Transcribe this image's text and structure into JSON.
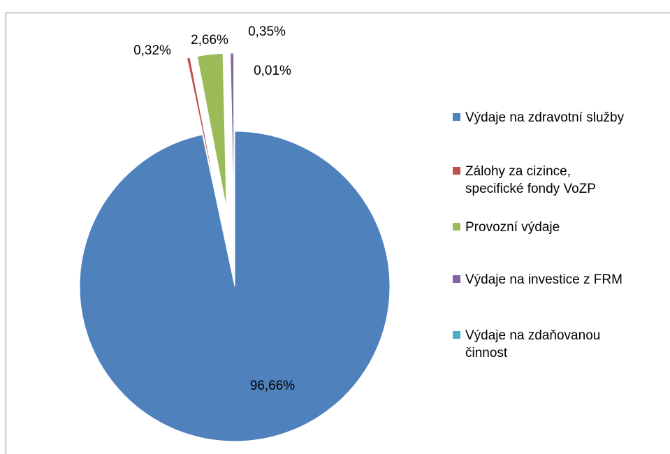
{
  "chart_data": {
    "type": "pie",
    "categories": [
      "Výdaje na zdravotní služby",
      "Zálohy za cizince,\nspecifické fondy VoZP",
      "Provozní výdaje",
      "Výdaje na investice z FRM",
      "Výdaje na zdaňovanou\nčinnost"
    ],
    "values": [
      96.66,
      0.32,
      2.66,
      0.35,
      0.01
    ],
    "value_labels": [
      "96,66%",
      "0,32%",
      "2,66%",
      "0,35%",
      "0,01%"
    ],
    "colors": [
      "#4f81bd",
      "#c0504d",
      "#9bbb59",
      "#8064a2",
      "#4bacc6"
    ],
    "legend": "right"
  }
}
